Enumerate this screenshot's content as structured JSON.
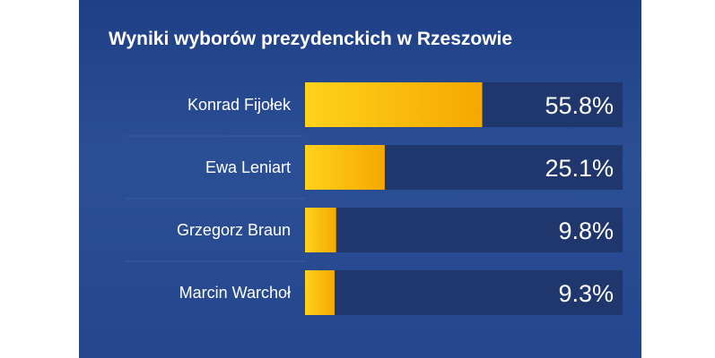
{
  "chart_data": {
    "type": "bar",
    "title": "Wyniki wyborów prezydenckich w Rzeszowie",
    "categories": [
      "Konrad Fijołek",
      "Ewa Leniart",
      "Grzegorz Braun",
      "Marcin Warchoł"
    ],
    "values": [
      55.8,
      25.1,
      9.8,
      9.3
    ],
    "value_labels": [
      "55.8%",
      "25.1%",
      "9.8%",
      "9.3%"
    ],
    "unit": "%",
    "xlim": [
      0,
      100
    ],
    "orientation": "horizontal",
    "grid": false,
    "legend": "none"
  },
  "colors": {
    "background": "#24468e",
    "track": "#1f376d",
    "bar_start": "#ffd21a",
    "bar_end": "#f5a800",
    "text": "#ffffff"
  }
}
